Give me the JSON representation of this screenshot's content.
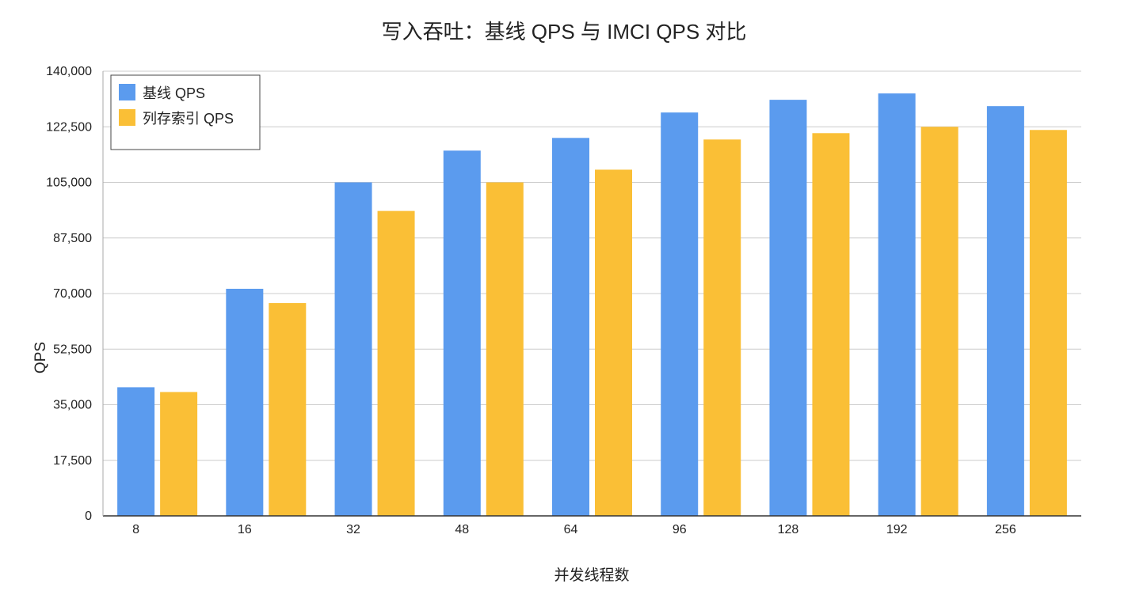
{
  "chart_data": {
    "type": "bar",
    "title": "写入吞吐：基线 QPS 与 IMCI QPS 对比",
    "xlabel": "并发线程数",
    "ylabel": "QPS",
    "categories": [
      "8",
      "16",
      "32",
      "48",
      "64",
      "96",
      "128",
      "192",
      "256"
    ],
    "y_ticks": [
      "0",
      "17,500",
      "35,000",
      "52,500",
      "70,000",
      "87,500",
      "105,000",
      "122,500",
      "140,000"
    ],
    "ylim": [
      0,
      140000
    ],
    "grid": true,
    "legend_position": "top-left",
    "series": [
      {
        "name": "基线 QPS",
        "color": "#5b9bee",
        "values": [
          40500,
          71500,
          105000,
          115000,
          119000,
          127000,
          131000,
          133000,
          129000
        ]
      },
      {
        "name": "列存索引 QPS",
        "color": "#fabf36",
        "values": [
          39000,
          67000,
          96000,
          105000,
          109000,
          118500,
          120500,
          122500,
          121500
        ]
      }
    ]
  }
}
